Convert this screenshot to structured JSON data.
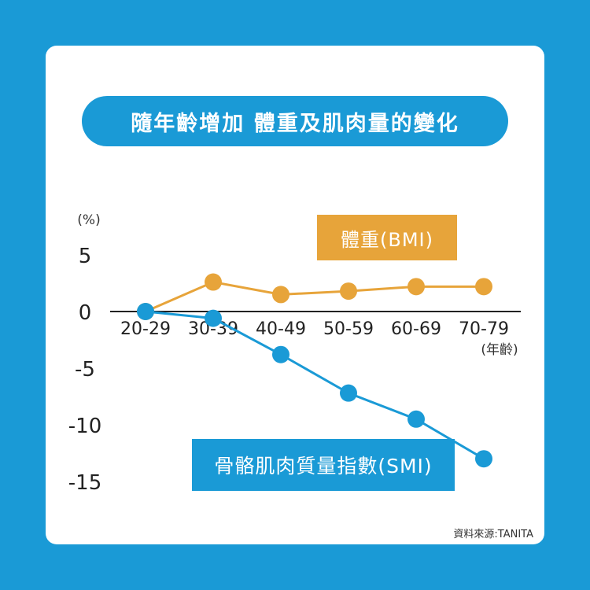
{
  "title": "隨年齡增加 體重及肌肉量的變化",
  "source": "資料來源:TANITA",
  "chart_data": {
    "type": "line",
    "ylabel": "(%)",
    "xlabel": "(年齡)",
    "categories": [
      "20-29",
      "30-39",
      "40-49",
      "50-59",
      "60-69",
      "70-79"
    ],
    "yticks": [
      5,
      0,
      -5,
      -10,
      -15
    ],
    "ylim": [
      -15,
      5
    ],
    "series": [
      {
        "name": "體重(BMI)",
        "color": "#e7a43a",
        "values": [
          0,
          2.6,
          1.5,
          1.8,
          2.2,
          2.2
        ]
      },
      {
        "name": "骨骼肌肉質量指數(SMI)",
        "color": "#1a9ad6",
        "values": [
          0,
          -0.6,
          -3.8,
          -7.2,
          -9.5,
          -13.0
        ]
      }
    ]
  }
}
